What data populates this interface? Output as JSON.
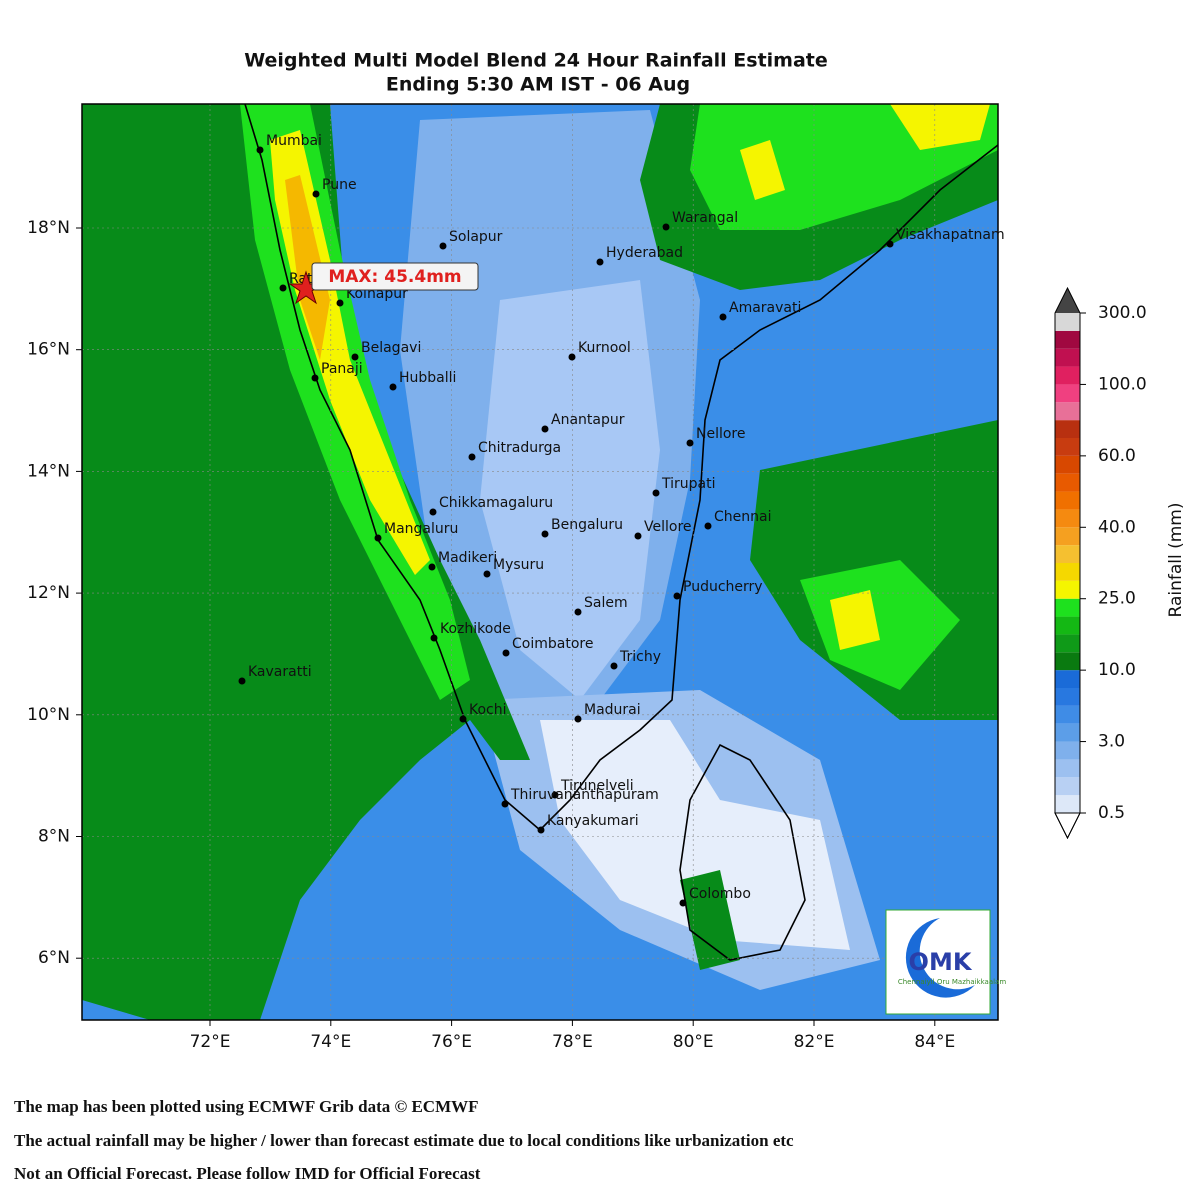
{
  "title": [
    "Weighted Multi Model Blend 24 Hour Rainfall Estimate",
    "Ending 5:30 AM IST - 06 Aug"
  ],
  "axes": {
    "x_ticks": [
      "72°E",
      "74°E",
      "76°E",
      "78°E",
      "80°E",
      "82°E",
      "84°E"
    ],
    "y_ticks": [
      "18°N",
      "16°N",
      "14°N",
      "12°N",
      "10°N",
      "8°N",
      "6°N"
    ]
  },
  "max_label": "MAX: 45.4mm",
  "cities": [
    "Mumbai",
    "Pune",
    "Solapur",
    "Warangal",
    "Visakhapatnam",
    "Hyderabad",
    "Ratnagiri",
    "Kolhapur",
    "Amaravati",
    "Belagavi",
    "Kurnool",
    "Panaji",
    "Hubballi",
    "Anantapur",
    "Nellore",
    "Chitradurga",
    "Tirupati",
    "Chikkamagaluru",
    "Chennai",
    "Mangaluru",
    "Bengaluru",
    "Vellore",
    "Madikeri",
    "Mysuru",
    "Puducherry",
    "Salem",
    "Kozhikode",
    "Coimbatore",
    "Trichy",
    "Kavaratti",
    "Kochi",
    "Madurai",
    "Tirunelveli",
    "Thiruvananthapuram",
    "Kanyakumari",
    "Colombo"
  ],
  "colorbar": {
    "title": "Rainfall (mm)",
    "labels": [
      "300.0",
      "100.0",
      "60.0",
      "40.0",
      "25.0",
      "10.0",
      "3.0",
      "0.5"
    ]
  },
  "logo": {
    "name": "OMK",
    "tagline": "Chennaiyil Oru Mazhaikkaalam"
  },
  "footer": [
    "The map has been plotted using ECMWF Grib data © ECMWF",
    "The actual rainfall may be higher / lower than forecast estimate due to local conditions like urbanization etc",
    "Not an Official Forecast. Please follow IMD for Official Forecast"
  ]
}
